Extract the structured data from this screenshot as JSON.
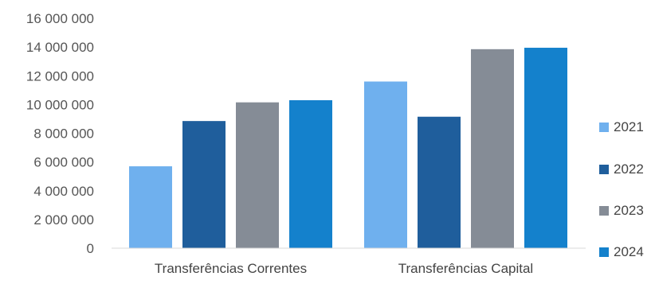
{
  "chart_data": {
    "type": "bar",
    "title": "",
    "xlabel": "",
    "ylabel": "",
    "categories": [
      "Transferências Correntes",
      "Transferências Capital"
    ],
    "series": [
      {
        "name": "2021",
        "color": "#6fb0ee",
        "values": [
          5700000,
          11600000
        ]
      },
      {
        "name": "2022",
        "color": "#1f5e9c",
        "values": [
          8850000,
          9150000
        ]
      },
      {
        "name": "2023",
        "color": "#858c96",
        "values": [
          10150000,
          13850000
        ]
      },
      {
        "name": "2024",
        "color": "#1481cc",
        "values": [
          10300000,
          13950000
        ]
      }
    ],
    "ylim": [
      0,
      16000000
    ],
    "yticks": [
      0,
      2000000,
      4000000,
      6000000,
      8000000,
      10000000,
      12000000,
      14000000,
      16000000
    ],
    "ytick_labels": [
      "0",
      "2 000 000",
      "4 000 000",
      "6 000 000",
      "8 000 000",
      "10 000 000",
      "12 000 000",
      "14 000 000",
      "16 000 000"
    ],
    "grid": false,
    "legend_position": "right"
  }
}
